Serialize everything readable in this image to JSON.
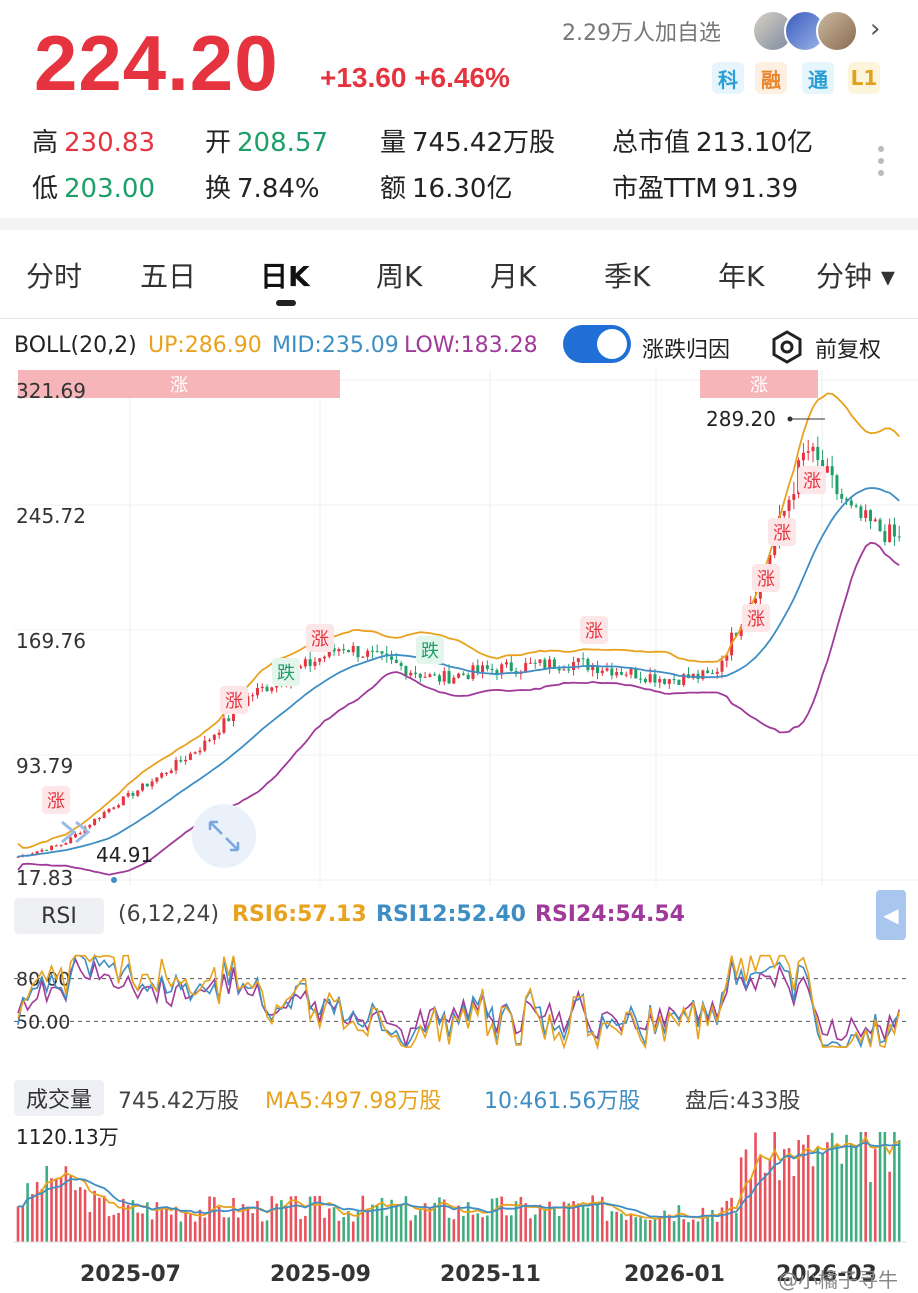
{
  "header": {
    "price": "224.20",
    "change": "+13.60 +6.46%",
    "watchers": "2.29万人加自选",
    "tags": [
      {
        "label": "科",
        "color": "#2a9fd6",
        "bg": "#e6f4fb"
      },
      {
        "label": "融",
        "color": "#e8862e",
        "bg": "#fdf0e3"
      },
      {
        "label": "通",
        "color": "#2a9fd6",
        "bg": "#e6f4fb"
      },
      {
        "label": "L1",
        "color": "#e0a21e",
        "bg": "#fdf4dc"
      }
    ],
    "stats": [
      {
        "label": "高",
        "value": "230.83",
        "tone": "red"
      },
      {
        "label": "开",
        "value": "208.57",
        "tone": "green"
      },
      {
        "label": "量",
        "value": "745.42万股",
        "tone": ""
      },
      {
        "label": "总市值",
        "value": "213.10亿",
        "tone": ""
      },
      {
        "label": "低",
        "value": "203.00",
        "tone": "green"
      },
      {
        "label": "换",
        "value": "7.84%",
        "tone": ""
      },
      {
        "label": "额",
        "value": "16.30亿",
        "tone": ""
      },
      {
        "label": "市盈TTM",
        "value": "91.39",
        "tone": ""
      }
    ]
  },
  "tabs": [
    "分时",
    "五日",
    "日K",
    "周K",
    "月K",
    "季K",
    "年K",
    "分钟 ▾"
  ],
  "active_tab": "日K",
  "boll": {
    "name": "BOLL(20,2)",
    "up": "UP:286.90",
    "mid": "MID:235.09",
    "low": "LOW:183.28",
    "toggle_label": "涨跌归因",
    "adjust_label": "前复权"
  },
  "price_axis": [
    "321.69",
    "245.72",
    "169.76",
    "93.79",
    "17.83"
  ],
  "annotations": {
    "high_marker": "289.20",
    "low_marker": "44.91",
    "band_label_up": "涨",
    "badges": [
      {
        "label": "涨",
        "type": "up"
      },
      {
        "label": "涨",
        "type": "up"
      },
      {
        "label": "跌",
        "type": "down"
      },
      {
        "label": "涨",
        "type": "up"
      },
      {
        "label": "跌",
        "type": "down"
      },
      {
        "label": "涨",
        "type": "up"
      },
      {
        "label": "涨",
        "type": "up"
      },
      {
        "label": "涨",
        "type": "up"
      },
      {
        "label": "涨",
        "type": "up"
      },
      {
        "label": "涨",
        "type": "up"
      }
    ]
  },
  "rsi": {
    "button": "RSI",
    "params": "(6,12,24)",
    "rsi6": "RSI6:57.13",
    "rsi12": "RSI12:52.40",
    "rsi24": "RSI24:54.54",
    "levels": [
      "80.00",
      "50.00"
    ]
  },
  "volume": {
    "button": "成交量",
    "value": "745.42万股",
    "ma5": "MA5:497.98万股",
    "ma10": "10:461.56万股",
    "after_hours": "盘后:433股",
    "max_label": "1120.13万"
  },
  "x_axis": [
    "2025-07",
    "2025-09",
    "2025-11",
    "2026-01",
    "2026-03"
  ],
  "watermark": "@小橘子寻牛",
  "colors": {
    "up": "#e5343f",
    "down": "#1e9f6a",
    "boll_up": "#e8a21e",
    "boll_mid": "#3e8ec4",
    "boll_low": "#a03a9a"
  },
  "chart_data": {
    "type": "candlestick",
    "price_range": [
      17.83,
      321.69
    ],
    "boll_last": {
      "up": 286.9,
      "mid": 235.09,
      "low": 183.28
    },
    "close_path": [
      {
        "x": "2025-06",
        "y": 32
      },
      {
        "x": "2025-06",
        "y": 40
      },
      {
        "x": "2025-07",
        "y": 62
      },
      {
        "x": "2025-07",
        "y": 80
      },
      {
        "x": "2025-08",
        "y": 100
      },
      {
        "x": "2025-08",
        "y": 130
      },
      {
        "x": "2025-09",
        "y": 145
      },
      {
        "x": "2025-09",
        "y": 160
      },
      {
        "x": "2025-10",
        "y": 150
      },
      {
        "x": "2025-10",
        "y": 140
      },
      {
        "x": "2025-11",
        "y": 145
      },
      {
        "x": "2025-11",
        "y": 148
      },
      {
        "x": "2025-12",
        "y": 150
      },
      {
        "x": "2025-12",
        "y": 145
      },
      {
        "x": "2026-01",
        "y": 140
      },
      {
        "x": "2026-01",
        "y": 142
      },
      {
        "x": "2026-02",
        "y": 200
      },
      {
        "x": "2026-02",
        "y": 280
      },
      {
        "x": "2026-03",
        "y": 240
      },
      {
        "x": "2026-03",
        "y": 224.2
      }
    ],
    "rsi_levels": [
      80,
      50
    ],
    "volume_max": "1120.13万"
  }
}
